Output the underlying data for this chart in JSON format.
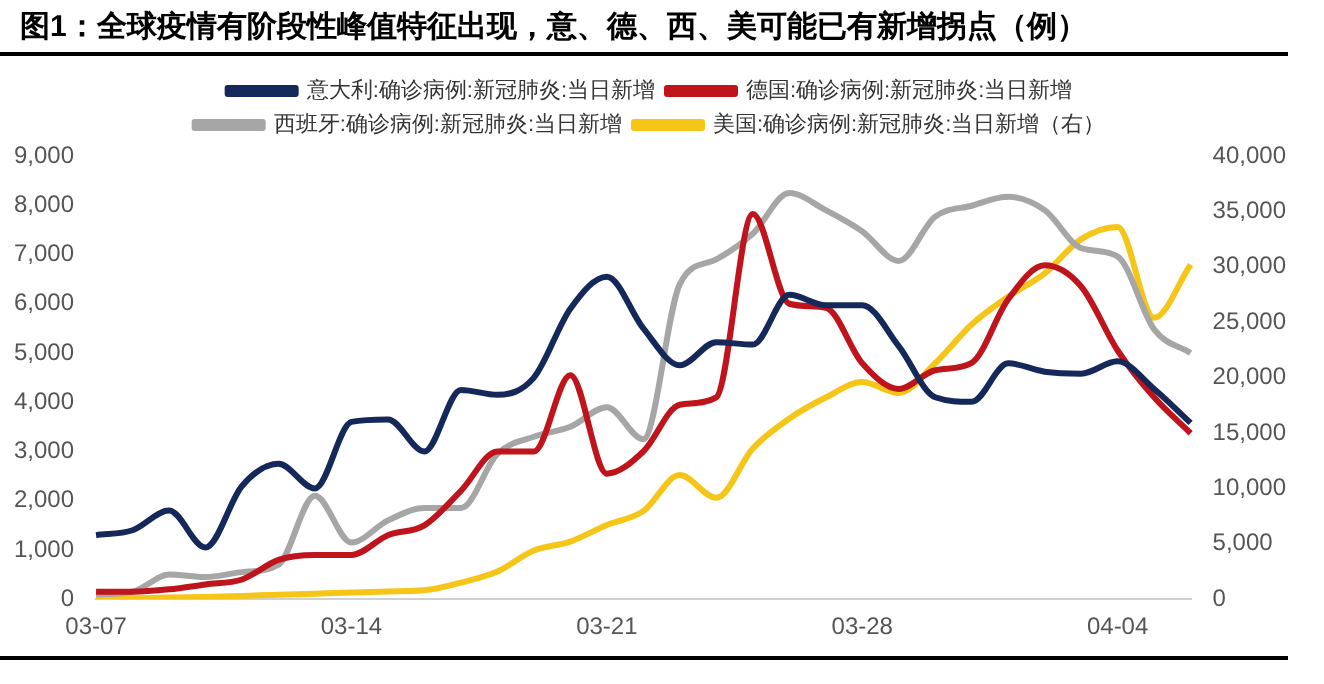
{
  "chart_data": {
    "type": "line",
    "title": "图1：全球疫情有阶段性峰值特征出现，意、德、西、美可能已有新增拐点（例）",
    "categories": [
      "03-07",
      null,
      null,
      null,
      null,
      null,
      null,
      "03-14",
      null,
      null,
      null,
      null,
      null,
      null,
      "03-21",
      null,
      null,
      null,
      null,
      null,
      null,
      "03-28",
      null,
      null,
      null,
      null,
      null,
      null,
      "04-04",
      null,
      null
    ],
    "series": [
      {
        "name": "意大利:确诊病例:新冠肺炎:当日新增",
        "color": "#14285a",
        "values": [
          1300,
          1400,
          1800,
          1050,
          2300,
          2750,
          2250,
          3600,
          3650,
          3000,
          4250,
          4150,
          4500,
          5900,
          6550,
          5500,
          4750,
          5220,
          5170,
          6180,
          5970,
          5970,
          5140,
          4100,
          4010,
          4790,
          4620,
          4580,
          4830,
          4270,
          3580
        ]
      },
      {
        "name": "德国:确诊病例:新冠肺炎:当日新增",
        "color": "#c0141c",
        "values": [
          150,
          150,
          200,
          300,
          400,
          800,
          900,
          900,
          1300,
          1500,
          2200,
          3000,
          3000,
          4550,
          2550,
          3000,
          3950,
          4100,
          7820,
          6000,
          5920,
          4790,
          4270,
          4650,
          4800,
          6090,
          6780,
          6350,
          5050,
          4100,
          3370
        ]
      },
      {
        "name": "西班牙:确诊病例:新冠肺炎:当日新增",
        "color": "#a6a6a6",
        "values": [
          100,
          150,
          500,
          450,
          550,
          700,
          2100,
          1150,
          1600,
          1850,
          1850,
          2950,
          3300,
          3500,
          3900,
          3250,
          6400,
          6900,
          7420,
          8250,
          7900,
          7470,
          6870,
          7770,
          7990,
          8170,
          7900,
          7130,
          6960,
          5480,
          5000
        ]
      },
      {
        "name": "美国:确诊病例:新冠肺炎:当日新增（右）",
        "color": "#f5c518",
        "axis": "y2",
        "values": [
          100,
          100,
          150,
          200,
          300,
          400,
          500,
          600,
          700,
          800,
          1500,
          2500,
          4400,
          5200,
          6700,
          7950,
          11200,
          9150,
          13600,
          16300,
          18200,
          19600,
          18600,
          21300,
          24800,
          27300,
          29400,
          32500,
          33600,
          25400,
          30200
        ]
      }
    ],
    "ylim": [
      0,
      9000
    ],
    "yticks": [
      {
        "value": 0,
        "label": "0"
      },
      {
        "value": 1000,
        "label": "1,000"
      },
      {
        "value": 2000,
        "label": "2,000"
      },
      {
        "value": 3000,
        "label": "3,000"
      },
      {
        "value": 4000,
        "label": "4,000"
      },
      {
        "value": 5000,
        "label": "5,000"
      },
      {
        "value": 6000,
        "label": "6,000"
      },
      {
        "value": 7000,
        "label": "7,000"
      },
      {
        "value": 8000,
        "label": "8,000"
      },
      {
        "value": 9000,
        "label": "9,000"
      }
    ],
    "y2lim": [
      0,
      40000
    ],
    "y2ticks": [
      {
        "value": 0,
        "label": "0"
      },
      {
        "value": 5000,
        "label": "5,000"
      },
      {
        "value": 10000,
        "label": "10,000"
      },
      {
        "value": 15000,
        "label": "15,000"
      },
      {
        "value": 20000,
        "label": "20,000"
      },
      {
        "value": 25000,
        "label": "25,000"
      },
      {
        "value": 30000,
        "label": "30,000"
      },
      {
        "value": 35000,
        "label": "35,000"
      },
      {
        "value": 40000,
        "label": "40,000"
      }
    ],
    "grid": false,
    "legend": "top",
    "marker": "none",
    "line_style": "solid"
  }
}
